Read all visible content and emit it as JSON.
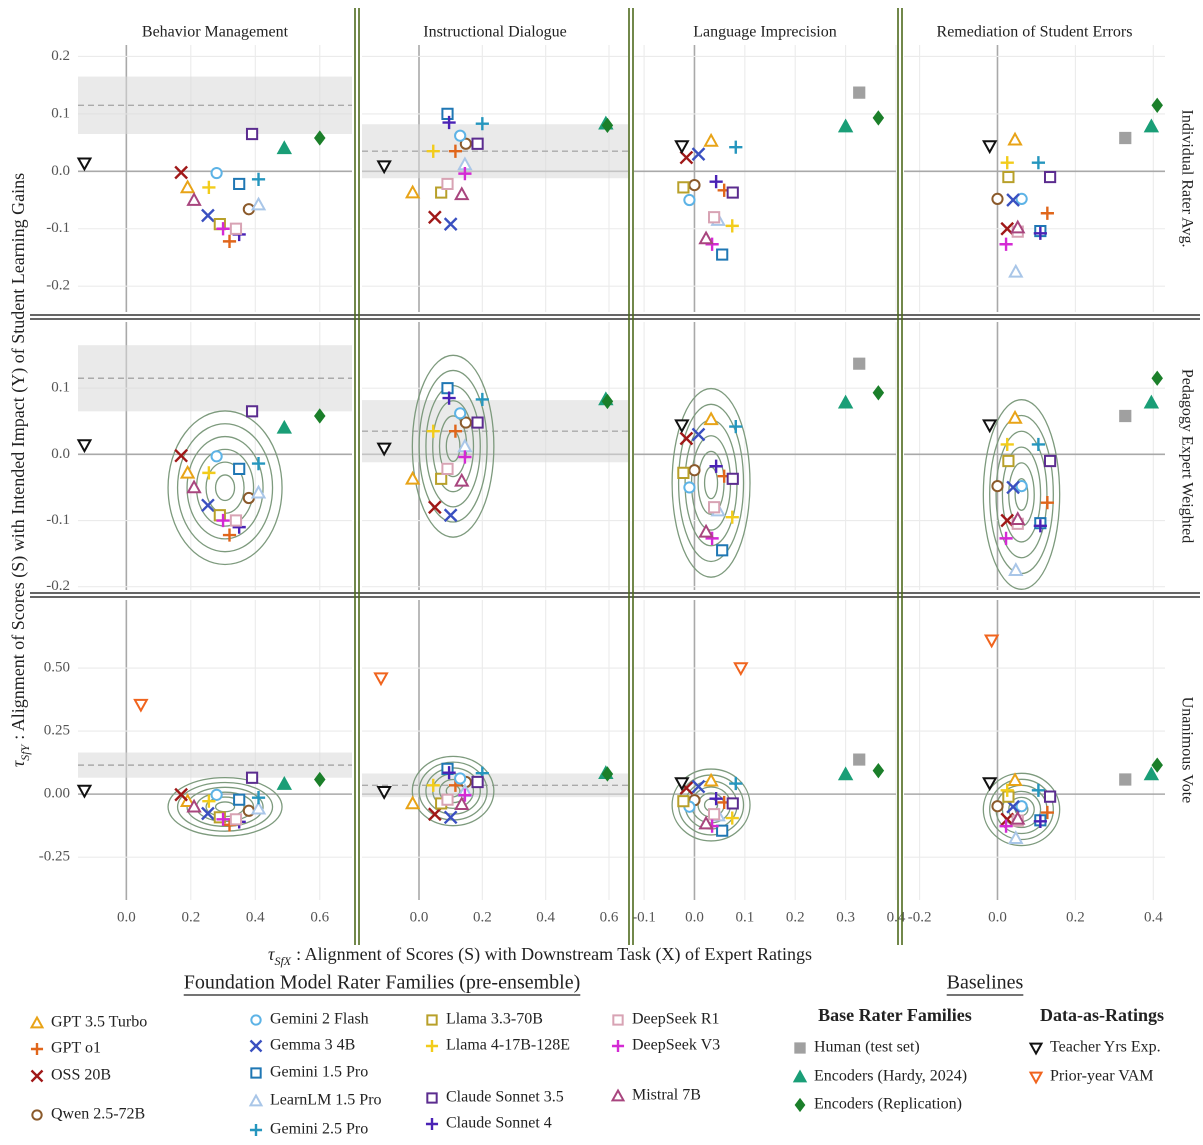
{
  "chart_data": {
    "type": "scatter",
    "x_label": {
      "symbol": "τ",
      "subscript": "SfX",
      "text": ": Alignment of Scores (S) with Downstream Task (X) of Expert Ratings"
    },
    "y_label": {
      "symbol": "τ",
      "subscript": "SfY",
      "text": ": Alignment of Scores (S) with Intended Impact (Y) of Student Learning Gains"
    },
    "grid": true,
    "columns": [
      {
        "title": "Behavior Management",
        "xlim": [
          -0.15,
          0.7
        ],
        "xticks": [
          {
            "value": 0,
            "label": "0.0"
          },
          0.2,
          0.4,
          0.6
        ],
        "band": {
          "low": 0.065,
          "mid": 0.115,
          "high": 0.165
        }
      },
      {
        "title": "Instructional Dialogue",
        "xlim": [
          -0.18,
          0.66
        ],
        "xticks": [
          {
            "value": 0,
            "label": "0.0"
          },
          0.2,
          0.4,
          0.6
        ],
        "band": {
          "low": -0.012,
          "mid": 0.035,
          "high": 0.082
        }
      },
      {
        "title": "Language Imprecision",
        "xlim": [
          -0.12,
          0.4
        ],
        "xticks": [
          -0.1,
          {
            "value": 0,
            "label": "0.0"
          },
          0.1,
          0.2,
          0.3,
          0.4
        ],
        "band": null
      },
      {
        "title": "Remediation of Student Errors",
        "xlim": [
          -0.24,
          0.43
        ],
        "xticks": [
          -0.2,
          {
            "value": 0,
            "label": "0.0"
          },
          0.2,
          0.4
        ],
        "band": null
      }
    ],
    "rows": [
      {
        "title": "Individual Rater Avg.",
        "ylim": [
          -0.245,
          0.22
        ],
        "yticks": [
          -0.2,
          -0.1,
          {
            "value": 0,
            "label": "0.0"
          },
          0.1,
          0.2
        ],
        "contours": false
      },
      {
        "title": "Pedagogy Expert Weighted",
        "ylim": [
          -0.205,
          0.2
        ],
        "yticks": [
          -0.2,
          -0.1,
          {
            "value": 0,
            "label": "0.0"
          },
          0.1
        ],
        "contours": true
      },
      {
        "title": "Unanimous Vote",
        "ylim": [
          -0.42,
          0.77
        ],
        "yticks": [
          -0.25,
          {
            "value": 0,
            "label": "0.00"
          },
          0.25,
          {
            "value": 0.5,
            "label": "0.50"
          }
        ],
        "contours": true
      }
    ],
    "legend_groups": [
      "Foundation Model Rater Families (pre-ensemble)",
      "Base Rater Families",
      "Data-as-Ratings"
    ],
    "baselines_heading": "Baselines",
    "series": [
      {
        "name": "GPT 3.5 Turbo",
        "group": "Foundation Model Rater Families (pre-ensemble)",
        "marker": "triangle",
        "filled": false,
        "color": "#E8A317",
        "x": [
          0.19,
          -0.02,
          0.033,
          0.045
        ],
        "y": [
          -0.028,
          -0.037,
          0.053,
          0.055
        ]
      },
      {
        "name": "GPT o1",
        "group": "Foundation Model Rater Families (pre-ensemble)",
        "marker": "plus",
        "filled": false,
        "color": "#E0661B",
        "x": [
          0.32,
          0.115,
          0.059,
          0.128
        ],
        "y": [
          -0.122,
          0.035,
          -0.033,
          -0.073
        ]
      },
      {
        "name": "OSS 20B",
        "group": "Foundation Model Rater Families (pre-ensemble)",
        "marker": "x",
        "filled": false,
        "color": "#A01818",
        "x": [
          0.17,
          0.05,
          -0.016,
          0.025
        ],
        "y": [
          -0.002,
          -0.08,
          0.024,
          -0.1
        ]
      },
      {
        "name": "Qwen 2.5-72B",
        "group": "Foundation Model Rater Families (pre-ensemble)",
        "marker": "circle",
        "filled": false,
        "color": "#8B5A2B",
        "x": [
          0.38,
          0.148,
          0.0,
          0.0
        ],
        "y": [
          -0.066,
          0.048,
          -0.024,
          -0.048
        ]
      },
      {
        "name": "Gemini 2 Flash",
        "group": "Foundation Model Rater Families (pre-ensemble)",
        "marker": "circle",
        "filled": false,
        "color": "#5DB3E6",
        "x": [
          0.28,
          0.13,
          -0.01,
          0.062
        ],
        "y": [
          -0.003,
          0.062,
          -0.05,
          -0.048
        ]
      },
      {
        "name": "Gemma 3 4B",
        "group": "Foundation Model Rater Families (pre-ensemble)",
        "marker": "x",
        "filled": false,
        "color": "#3A50C0",
        "x": [
          0.253,
          0.1,
          0.008,
          0.04
        ],
        "y": [
          -0.077,
          -0.092,
          0.03,
          -0.05
        ]
      },
      {
        "name": "Gemini 1.5 Pro",
        "group": "Foundation Model Rater Families (pre-ensemble)",
        "marker": "square",
        "filled": false,
        "color": "#1F77B4",
        "x": [
          0.35,
          0.09,
          0.055,
          0.11
        ],
        "y": [
          -0.022,
          0.1,
          -0.145,
          -0.104
        ]
      },
      {
        "name": "LearnLM 1.5 Pro",
        "group": "Foundation Model Rater Families (pre-ensemble)",
        "marker": "triangle",
        "filled": false,
        "color": "#A9C6E8",
        "x": [
          0.41,
          0.145,
          0.047,
          0.047
        ],
        "y": [
          -0.058,
          0.012,
          -0.085,
          -0.175
        ]
      },
      {
        "name": "Gemini 2.5 Pro",
        "group": "Foundation Model Rater Families (pre-ensemble)",
        "marker": "plus",
        "filled": false,
        "color": "#2596BE",
        "x": [
          0.41,
          0.2,
          0.082,
          0.105
        ],
        "y": [
          -0.014,
          0.083,
          0.042,
          0.015
        ]
      },
      {
        "name": "Llama 3.3-70B",
        "group": "Foundation Model Rater Families (pre-ensemble)",
        "marker": "square",
        "filled": false,
        "color": "#B8A02A",
        "x": [
          0.29,
          0.07,
          -0.022,
          0.028
        ],
        "y": [
          -0.092,
          -0.037,
          -0.028,
          -0.01
        ]
      },
      {
        "name": "Llama 4-17B-128E",
        "group": "Foundation Model Rater Families (pre-ensemble)",
        "marker": "plus",
        "filled": false,
        "color": "#F2CC1B",
        "x": [
          0.256,
          0.045,
          0.075,
          0.025
        ],
        "y": [
          -0.028,
          0.035,
          -0.095,
          0.015
        ]
      },
      {
        "name": "Claude Sonnet 3.5",
        "group": "Foundation Model Rater Families (pre-ensemble)",
        "marker": "square",
        "filled": false,
        "color": "#5B2C8F",
        "x": [
          0.39,
          0.185,
          0.076,
          0.135
        ],
        "y": [
          0.065,
          0.048,
          -0.037,
          -0.01
        ]
      },
      {
        "name": "Claude Sonnet 4",
        "group": "Foundation Model Rater Families (pre-ensemble)",
        "marker": "plus",
        "filled": false,
        "color": "#4A22B5",
        "x": [
          0.35,
          0.095,
          0.043,
          0.11
        ],
        "y": [
          -0.11,
          0.085,
          -0.018,
          -0.108
        ]
      },
      {
        "name": "DeepSeek R1",
        "group": "Foundation Model Rater Families (pre-ensemble)",
        "marker": "square",
        "filled": false,
        "color": "#D8A3B4",
        "x": [
          0.34,
          0.09,
          0.039,
          0.052
        ],
        "y": [
          -0.1,
          -0.022,
          -0.08,
          -0.105
        ]
      },
      {
        "name": "DeepSeek V3",
        "group": "Foundation Model Rater Families (pre-ensemble)",
        "marker": "plus",
        "filled": false,
        "color": "#D42AD4",
        "x": [
          0.3,
          0.145,
          0.035,
          0.022
        ],
        "y": [
          -0.1,
          -0.004,
          -0.127,
          -0.127
        ]
      },
      {
        "name": "Mistral 7B",
        "group": "Foundation Model Rater Families (pre-ensemble)",
        "marker": "triangle",
        "filled": false,
        "color": "#A8457E",
        "x": [
          0.21,
          0.135,
          0.023,
          0.052
        ],
        "y": [
          -0.05,
          -0.04,
          -0.117,
          -0.098
        ]
      },
      {
        "name": "Human (test set)",
        "group": "Base Rater Families",
        "marker": "square",
        "filled": true,
        "color": "#A0A0A0",
        "x": [
          null,
          null,
          0.327,
          0.328
        ],
        "y": [
          null,
          null,
          0.137,
          0.058
        ]
      },
      {
        "name": "Encoders (Hardy, 2024)",
        "group": "Base Rater Families",
        "marker": "triangle",
        "filled": true,
        "color": "#1A9E77",
        "x": [
          0.49,
          0.59,
          0.3,
          0.395
        ],
        "y": [
          0.04,
          0.083,
          0.078,
          0.078
        ]
      },
      {
        "name": "Encoders (Replication)",
        "group": "Base Rater Families",
        "marker": "diamond",
        "filled": true,
        "color": "#1B7F2A",
        "x": [
          0.6,
          0.595,
          0.365,
          0.41
        ],
        "y": [
          0.058,
          0.08,
          0.093,
          0.115
        ]
      },
      {
        "name": "Teacher Yrs Exp.",
        "group": "Data-as-Ratings",
        "marker": "triangle-down",
        "filled": false,
        "color": "#111111",
        "x": [
          -0.13,
          -0.11,
          -0.025,
          -0.02
        ],
        "y": [
          0.014,
          0.009,
          0.044,
          0.044
        ]
      },
      {
        "name": "Prior-year VAM",
        "group": "Data-as-Ratings",
        "marker": "triangle-down",
        "filled": false,
        "color": "#F0641E",
        "row": "Unanimous Vote",
        "x": [
          0.045,
          -0.12,
          0.092,
          -0.015
        ],
        "y": [
          0.355,
          0.46,
          0.5,
          0.61
        ]
      }
    ]
  }
}
